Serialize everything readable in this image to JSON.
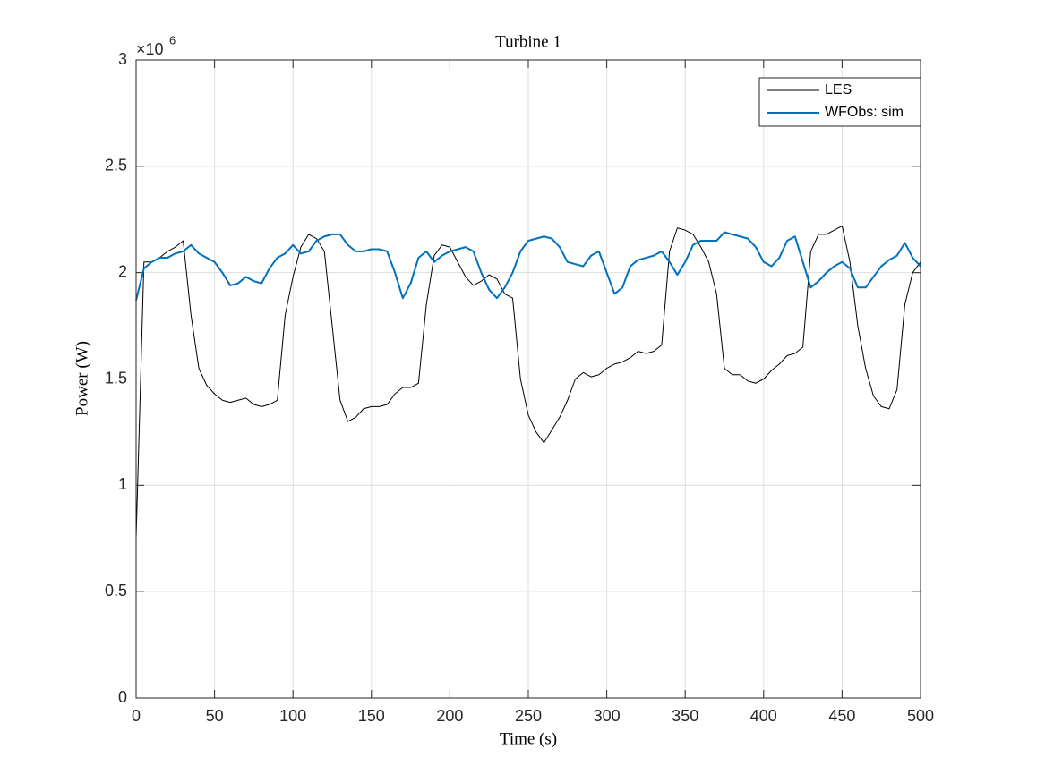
{
  "chart_data": {
    "type": "line",
    "title": "Turbine 1",
    "xlabel": "Time (s)",
    "ylabel": "Power (W)",
    "y_exponent_base": "×10",
    "y_exponent": "6",
    "x": [
      0,
      5,
      10,
      15,
      20,
      25,
      30,
      35,
      40,
      45,
      50,
      55,
      60,
      65,
      70,
      75,
      80,
      85,
      90,
      95,
      100,
      105,
      110,
      115,
      120,
      125,
      130,
      135,
      140,
      145,
      150,
      155,
      160,
      165,
      170,
      175,
      180,
      185,
      190,
      195,
      200,
      205,
      210,
      215,
      220,
      225,
      230,
      235,
      240,
      245,
      250,
      255,
      260,
      265,
      270,
      275,
      280,
      285,
      290,
      295,
      300,
      305,
      310,
      315,
      320,
      325,
      330,
      335,
      340,
      345,
      350,
      355,
      360,
      365,
      370,
      375,
      380,
      385,
      390,
      395,
      400,
      405,
      410,
      415,
      420,
      425,
      430,
      435,
      440,
      445,
      450,
      455,
      460,
      465,
      470,
      475,
      480,
      485,
      490,
      495,
      500
    ],
    "series": [
      {
        "name": "LES",
        "color": "#000000",
        "width": 1,
        "values": [
          750000,
          2050000,
          2050000,
          2070000,
          2100000,
          2120000,
          2150000,
          1800000,
          1550000,
          1470000,
          1430000,
          1400000,
          1390000,
          1400000,
          1410000,
          1380000,
          1370000,
          1380000,
          1400000,
          1800000,
          1980000,
          2120000,
          2180000,
          2160000,
          2100000,
          1750000,
          1400000,
          1300000,
          1320000,
          1360000,
          1370000,
          1370000,
          1380000,
          1430000,
          1460000,
          1460000,
          1480000,
          1850000,
          2080000,
          2130000,
          2120000,
          2050000,
          1980000,
          1940000,
          1960000,
          1990000,
          1970000,
          1900000,
          1880000,
          1500000,
          1330000,
          1250000,
          1200000,
          1260000,
          1320000,
          1400000,
          1500000,
          1530000,
          1510000,
          1520000,
          1550000,
          1570000,
          1580000,
          1600000,
          1630000,
          1620000,
          1630000,
          1660000,
          2100000,
          2210000,
          2200000,
          2180000,
          2120000,
          2050000,
          1900000,
          1550000,
          1520000,
          1520000,
          1490000,
          1480000,
          1500000,
          1540000,
          1570000,
          1610000,
          1620000,
          1650000,
          2100000,
          2180000,
          2180000,
          2200000,
          2220000,
          2050000,
          1750000,
          1550000,
          1420000,
          1370000,
          1360000,
          1450000,
          1850000,
          2000000,
          2050000
        ]
      },
      {
        "name": "WFObs: sim",
        "color": "#0072bd",
        "width": 2,
        "values": [
          1870000,
          2020000,
          2050000,
          2070000,
          2070000,
          2090000,
          2100000,
          2130000,
          2090000,
          2070000,
          2050000,
          2000000,
          1940000,
          1950000,
          1980000,
          1960000,
          1950000,
          2020000,
          2070000,
          2090000,
          2130000,
          2090000,
          2100000,
          2150000,
          2170000,
          2180000,
          2180000,
          2130000,
          2100000,
          2100000,
          2110000,
          2110000,
          2100000,
          2000000,
          1880000,
          1950000,
          2070000,
          2100000,
          2050000,
          2080000,
          2100000,
          2110000,
          2120000,
          2100000,
          2000000,
          1920000,
          1880000,
          1930000,
          2000000,
          2100000,
          2150000,
          2160000,
          2170000,
          2160000,
          2120000,
          2050000,
          2040000,
          2030000,
          2080000,
          2100000,
          2000000,
          1900000,
          1930000,
          2030000,
          2060000,
          2070000,
          2080000,
          2100000,
          2050000,
          1990000,
          2050000,
          2130000,
          2150000,
          2150000,
          2150000,
          2190000,
          2180000,
          2170000,
          2160000,
          2120000,
          2050000,
          2030000,
          2070000,
          2150000,
          2170000,
          2050000,
          1930000,
          1960000,
          2000000,
          2030000,
          2050000,
          2020000,
          1930000,
          1930000,
          1980000,
          2030000,
          2060000,
          2080000,
          2140000,
          2070000,
          2030000
        ]
      }
    ],
    "xlim": [
      0,
      500
    ],
    "xticks": [
      0,
      50,
      100,
      150,
      200,
      250,
      300,
      350,
      400,
      450,
      500
    ],
    "ylim": [
      0,
      3000000
    ],
    "yticks": [
      {
        "value": 0,
        "label": "0"
      },
      {
        "value": 500000,
        "label": "0.5"
      },
      {
        "value": 1000000,
        "label": "1"
      },
      {
        "value": 1500000,
        "label": "1.5"
      },
      {
        "value": 2000000,
        "label": "2"
      },
      {
        "value": 2500000,
        "label": "2.5"
      },
      {
        "value": 3000000,
        "label": "3"
      }
    ],
    "grid": true,
    "legend": "northeast"
  }
}
